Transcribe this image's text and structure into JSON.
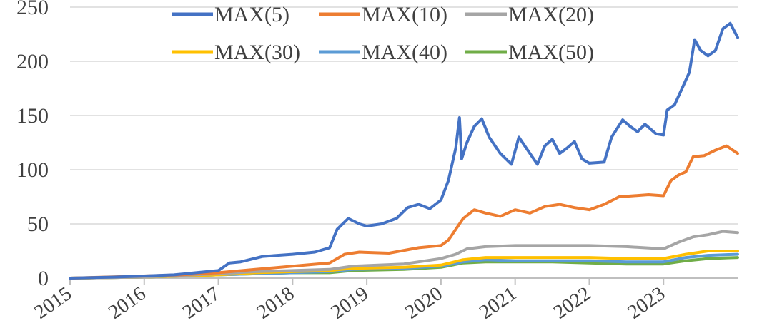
{
  "chart_data": {
    "type": "line",
    "title": "",
    "xlabel": "",
    "ylabel": "",
    "ylim": [
      0,
      250
    ],
    "yticks": [
      "0",
      "50",
      "100",
      "150",
      "200",
      "250"
    ],
    "xlim": [
      2015.0,
      2024.0
    ],
    "xticks": [
      "2015",
      "2016",
      "2017",
      "2018",
      "2019",
      "2020",
      "2021",
      "2022",
      "2023"
    ],
    "grid": "horizontal",
    "legend": "top",
    "series": [
      {
        "name": "MAX(5)",
        "color": "#4472C4",
        "points": [
          [
            2015.0,
            0
          ],
          [
            2015.3,
            0.5
          ],
          [
            2015.6,
            1
          ],
          [
            2016.0,
            2
          ],
          [
            2016.4,
            3
          ],
          [
            2016.7,
            5
          ],
          [
            2017.0,
            7
          ],
          [
            2017.15,
            14
          ],
          [
            2017.3,
            15
          ],
          [
            2017.6,
            20
          ],
          [
            2018.0,
            22
          ],
          [
            2018.3,
            24
          ],
          [
            2018.5,
            28
          ],
          [
            2018.6,
            45
          ],
          [
            2018.75,
            55
          ],
          [
            2018.9,
            50
          ],
          [
            2019.0,
            48
          ],
          [
            2019.2,
            50
          ],
          [
            2019.4,
            55
          ],
          [
            2019.55,
            65
          ],
          [
            2019.7,
            68
          ],
          [
            2019.85,
            64
          ],
          [
            2020.0,
            72
          ],
          [
            2020.1,
            90
          ],
          [
            2020.2,
            120
          ],
          [
            2020.25,
            148
          ],
          [
            2020.28,
            110
          ],
          [
            2020.35,
            125
          ],
          [
            2020.45,
            140
          ],
          [
            2020.55,
            147
          ],
          [
            2020.65,
            130
          ],
          [
            2020.8,
            115
          ],
          [
            2020.95,
            105
          ],
          [
            2021.05,
            130
          ],
          [
            2021.15,
            120
          ],
          [
            2021.3,
            105
          ],
          [
            2021.4,
            122
          ],
          [
            2021.5,
            128
          ],
          [
            2021.6,
            115
          ],
          [
            2021.7,
            120
          ],
          [
            2021.8,
            126
          ],
          [
            2021.9,
            110
          ],
          [
            2022.0,
            106
          ],
          [
            2022.2,
            107
          ],
          [
            2022.3,
            130
          ],
          [
            2022.45,
            146
          ],
          [
            2022.55,
            140
          ],
          [
            2022.65,
            135
          ],
          [
            2022.75,
            142
          ],
          [
            2022.9,
            133
          ],
          [
            2023.0,
            132
          ],
          [
            2023.05,
            155
          ],
          [
            2023.15,
            160
          ],
          [
            2023.25,
            175
          ],
          [
            2023.35,
            190
          ],
          [
            2023.42,
            220
          ],
          [
            2023.5,
            210
          ],
          [
            2023.6,
            205
          ],
          [
            2023.7,
            210
          ],
          [
            2023.8,
            230
          ],
          [
            2023.9,
            235
          ],
          [
            2024.0,
            222
          ]
        ]
      },
      {
        "name": "MAX(10)",
        "color": "#ED7D31",
        "points": [
          [
            2015.0,
            0
          ],
          [
            2015.5,
            1
          ],
          [
            2016.0,
            2
          ],
          [
            2016.5,
            3
          ],
          [
            2017.0,
            5
          ],
          [
            2017.5,
            8
          ],
          [
            2018.0,
            11
          ],
          [
            2018.5,
            14
          ],
          [
            2018.7,
            22
          ],
          [
            2018.9,
            24
          ],
          [
            2019.3,
            23
          ],
          [
            2019.7,
            28
          ],
          [
            2020.0,
            30
          ],
          [
            2020.1,
            35
          ],
          [
            2020.2,
            45
          ],
          [
            2020.3,
            55
          ],
          [
            2020.45,
            63
          ],
          [
            2020.6,
            60
          ],
          [
            2020.8,
            57
          ],
          [
            2021.0,
            63
          ],
          [
            2021.2,
            60
          ],
          [
            2021.4,
            66
          ],
          [
            2021.6,
            68
          ],
          [
            2021.8,
            65
          ],
          [
            2022.0,
            63
          ],
          [
            2022.2,
            68
          ],
          [
            2022.4,
            75
          ],
          [
            2022.6,
            76
          ],
          [
            2022.8,
            77
          ],
          [
            2023.0,
            76
          ],
          [
            2023.1,
            90
          ],
          [
            2023.2,
            95
          ],
          [
            2023.3,
            98
          ],
          [
            2023.4,
            112
          ],
          [
            2023.55,
            113
          ],
          [
            2023.7,
            118
          ],
          [
            2023.85,
            122
          ],
          [
            2024.0,
            115
          ]
        ]
      },
      {
        "name": "MAX(20)",
        "color": "#A5A5A5",
        "points": [
          [
            2015.0,
            0
          ],
          [
            2016.0,
            1
          ],
          [
            2017.0,
            4
          ],
          [
            2017.5,
            6
          ],
          [
            2018.0,
            7
          ],
          [
            2018.5,
            8
          ],
          [
            2018.8,
            11
          ],
          [
            2019.5,
            13
          ],
          [
            2020.0,
            18
          ],
          [
            2020.2,
            22
          ],
          [
            2020.35,
            27
          ],
          [
            2020.6,
            29
          ],
          [
            2021.0,
            30
          ],
          [
            2021.5,
            30
          ],
          [
            2022.0,
            30
          ],
          [
            2022.5,
            29
          ],
          [
            2023.0,
            27
          ],
          [
            2023.2,
            33
          ],
          [
            2023.4,
            38
          ],
          [
            2023.6,
            40
          ],
          [
            2023.8,
            43
          ],
          [
            2024.0,
            42
          ]
        ]
      },
      {
        "name": "MAX(30)",
        "color": "#FFC000",
        "points": [
          [
            2015.0,
            0
          ],
          [
            2016.0,
            1
          ],
          [
            2017.0,
            3
          ],
          [
            2017.5,
            5
          ],
          [
            2018.0,
            6
          ],
          [
            2018.5,
            7
          ],
          [
            2018.8,
            9
          ],
          [
            2019.5,
            10
          ],
          [
            2020.0,
            12
          ],
          [
            2020.3,
            17
          ],
          [
            2020.6,
            19
          ],
          [
            2021.0,
            19
          ],
          [
            2021.5,
            19
          ],
          [
            2022.0,
            19
          ],
          [
            2022.5,
            18
          ],
          [
            2023.0,
            18
          ],
          [
            2023.3,
            22
          ],
          [
            2023.6,
            25
          ],
          [
            2024.0,
            25
          ]
        ]
      },
      {
        "name": "MAX(40)",
        "color": "#5B9BD5",
        "points": [
          [
            2015.0,
            0
          ],
          [
            2016.0,
            1
          ],
          [
            2017.0,
            3
          ],
          [
            2017.5,
            4
          ],
          [
            2018.0,
            5
          ],
          [
            2018.5,
            6
          ],
          [
            2018.8,
            8
          ],
          [
            2019.5,
            9
          ],
          [
            2020.0,
            11
          ],
          [
            2020.3,
            15
          ],
          [
            2020.6,
            17
          ],
          [
            2021.0,
            16
          ],
          [
            2021.5,
            16
          ],
          [
            2022.0,
            16
          ],
          [
            2022.5,
            15
          ],
          [
            2023.0,
            15
          ],
          [
            2023.3,
            19
          ],
          [
            2023.6,
            21
          ],
          [
            2024.0,
            22
          ]
        ]
      },
      {
        "name": "MAX(50)",
        "color": "#70AD47",
        "points": [
          [
            2015.0,
            0
          ],
          [
            2016.0,
            1
          ],
          [
            2017.0,
            3
          ],
          [
            2017.5,
            4
          ],
          [
            2018.0,
            5
          ],
          [
            2018.5,
            5
          ],
          [
            2018.8,
            7
          ],
          [
            2019.5,
            8
          ],
          [
            2020.0,
            10
          ],
          [
            2020.3,
            14
          ],
          [
            2020.6,
            15
          ],
          [
            2021.0,
            15
          ],
          [
            2021.5,
            15
          ],
          [
            2022.0,
            14
          ],
          [
            2022.5,
            13
          ],
          [
            2023.0,
            13
          ],
          [
            2023.3,
            16
          ],
          [
            2023.6,
            18
          ],
          [
            2024.0,
            19
          ]
        ]
      }
    ]
  }
}
